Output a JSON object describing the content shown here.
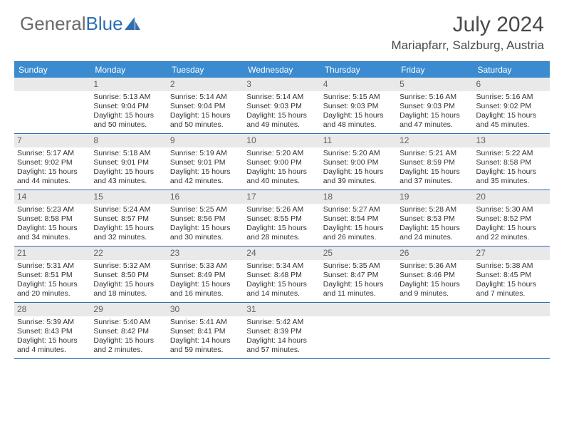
{
  "logo": {
    "text1": "General",
    "text2": "Blue"
  },
  "title": "July 2024",
  "location": "Mariapfarr, Salzburg, Austria",
  "colors": {
    "header_bg": "#3a8bd0",
    "border": "#2f6fb0",
    "daynum_bg": "#e9e9e9",
    "text": "#333333",
    "title_text": "#4a4a4a"
  },
  "typography": {
    "title_fontsize": 30,
    "location_fontsize": 17,
    "dow_fontsize": 12,
    "cell_fontsize": 10.5
  },
  "dow": [
    "Sunday",
    "Monday",
    "Tuesday",
    "Wednesday",
    "Thursday",
    "Friday",
    "Saturday"
  ],
  "weeks": [
    [
      {
        "n": "",
        "sr": "",
        "ss": "",
        "d1": "",
        "d2": ""
      },
      {
        "n": "1",
        "sr": "Sunrise: 5:13 AM",
        "ss": "Sunset: 9:04 PM",
        "d1": "Daylight: 15 hours",
        "d2": "and 50 minutes."
      },
      {
        "n": "2",
        "sr": "Sunrise: 5:14 AM",
        "ss": "Sunset: 9:04 PM",
        "d1": "Daylight: 15 hours",
        "d2": "and 50 minutes."
      },
      {
        "n": "3",
        "sr": "Sunrise: 5:14 AM",
        "ss": "Sunset: 9:03 PM",
        "d1": "Daylight: 15 hours",
        "d2": "and 49 minutes."
      },
      {
        "n": "4",
        "sr": "Sunrise: 5:15 AM",
        "ss": "Sunset: 9:03 PM",
        "d1": "Daylight: 15 hours",
        "d2": "and 48 minutes."
      },
      {
        "n": "5",
        "sr": "Sunrise: 5:16 AM",
        "ss": "Sunset: 9:03 PM",
        "d1": "Daylight: 15 hours",
        "d2": "and 47 minutes."
      },
      {
        "n": "6",
        "sr": "Sunrise: 5:16 AM",
        "ss": "Sunset: 9:02 PM",
        "d1": "Daylight: 15 hours",
        "d2": "and 45 minutes."
      }
    ],
    [
      {
        "n": "7",
        "sr": "Sunrise: 5:17 AM",
        "ss": "Sunset: 9:02 PM",
        "d1": "Daylight: 15 hours",
        "d2": "and 44 minutes."
      },
      {
        "n": "8",
        "sr": "Sunrise: 5:18 AM",
        "ss": "Sunset: 9:01 PM",
        "d1": "Daylight: 15 hours",
        "d2": "and 43 minutes."
      },
      {
        "n": "9",
        "sr": "Sunrise: 5:19 AM",
        "ss": "Sunset: 9:01 PM",
        "d1": "Daylight: 15 hours",
        "d2": "and 42 minutes."
      },
      {
        "n": "10",
        "sr": "Sunrise: 5:20 AM",
        "ss": "Sunset: 9:00 PM",
        "d1": "Daylight: 15 hours",
        "d2": "and 40 minutes."
      },
      {
        "n": "11",
        "sr": "Sunrise: 5:20 AM",
        "ss": "Sunset: 9:00 PM",
        "d1": "Daylight: 15 hours",
        "d2": "and 39 minutes."
      },
      {
        "n": "12",
        "sr": "Sunrise: 5:21 AM",
        "ss": "Sunset: 8:59 PM",
        "d1": "Daylight: 15 hours",
        "d2": "and 37 minutes."
      },
      {
        "n": "13",
        "sr": "Sunrise: 5:22 AM",
        "ss": "Sunset: 8:58 PM",
        "d1": "Daylight: 15 hours",
        "d2": "and 35 minutes."
      }
    ],
    [
      {
        "n": "14",
        "sr": "Sunrise: 5:23 AM",
        "ss": "Sunset: 8:58 PM",
        "d1": "Daylight: 15 hours",
        "d2": "and 34 minutes."
      },
      {
        "n": "15",
        "sr": "Sunrise: 5:24 AM",
        "ss": "Sunset: 8:57 PM",
        "d1": "Daylight: 15 hours",
        "d2": "and 32 minutes."
      },
      {
        "n": "16",
        "sr": "Sunrise: 5:25 AM",
        "ss": "Sunset: 8:56 PM",
        "d1": "Daylight: 15 hours",
        "d2": "and 30 minutes."
      },
      {
        "n": "17",
        "sr": "Sunrise: 5:26 AM",
        "ss": "Sunset: 8:55 PM",
        "d1": "Daylight: 15 hours",
        "d2": "and 28 minutes."
      },
      {
        "n": "18",
        "sr": "Sunrise: 5:27 AM",
        "ss": "Sunset: 8:54 PM",
        "d1": "Daylight: 15 hours",
        "d2": "and 26 minutes."
      },
      {
        "n": "19",
        "sr": "Sunrise: 5:28 AM",
        "ss": "Sunset: 8:53 PM",
        "d1": "Daylight: 15 hours",
        "d2": "and 24 minutes."
      },
      {
        "n": "20",
        "sr": "Sunrise: 5:30 AM",
        "ss": "Sunset: 8:52 PM",
        "d1": "Daylight: 15 hours",
        "d2": "and 22 minutes."
      }
    ],
    [
      {
        "n": "21",
        "sr": "Sunrise: 5:31 AM",
        "ss": "Sunset: 8:51 PM",
        "d1": "Daylight: 15 hours",
        "d2": "and 20 minutes."
      },
      {
        "n": "22",
        "sr": "Sunrise: 5:32 AM",
        "ss": "Sunset: 8:50 PM",
        "d1": "Daylight: 15 hours",
        "d2": "and 18 minutes."
      },
      {
        "n": "23",
        "sr": "Sunrise: 5:33 AM",
        "ss": "Sunset: 8:49 PM",
        "d1": "Daylight: 15 hours",
        "d2": "and 16 minutes."
      },
      {
        "n": "24",
        "sr": "Sunrise: 5:34 AM",
        "ss": "Sunset: 8:48 PM",
        "d1": "Daylight: 15 hours",
        "d2": "and 14 minutes."
      },
      {
        "n": "25",
        "sr": "Sunrise: 5:35 AM",
        "ss": "Sunset: 8:47 PM",
        "d1": "Daylight: 15 hours",
        "d2": "and 11 minutes."
      },
      {
        "n": "26",
        "sr": "Sunrise: 5:36 AM",
        "ss": "Sunset: 8:46 PM",
        "d1": "Daylight: 15 hours",
        "d2": "and 9 minutes."
      },
      {
        "n": "27",
        "sr": "Sunrise: 5:38 AM",
        "ss": "Sunset: 8:45 PM",
        "d1": "Daylight: 15 hours",
        "d2": "and 7 minutes."
      }
    ],
    [
      {
        "n": "28",
        "sr": "Sunrise: 5:39 AM",
        "ss": "Sunset: 8:43 PM",
        "d1": "Daylight: 15 hours",
        "d2": "and 4 minutes."
      },
      {
        "n": "29",
        "sr": "Sunrise: 5:40 AM",
        "ss": "Sunset: 8:42 PM",
        "d1": "Daylight: 15 hours",
        "d2": "and 2 minutes."
      },
      {
        "n": "30",
        "sr": "Sunrise: 5:41 AM",
        "ss": "Sunset: 8:41 PM",
        "d1": "Daylight: 14 hours",
        "d2": "and 59 minutes."
      },
      {
        "n": "31",
        "sr": "Sunrise: 5:42 AM",
        "ss": "Sunset: 8:39 PM",
        "d1": "Daylight: 14 hours",
        "d2": "and 57 minutes."
      },
      {
        "n": "",
        "sr": "",
        "ss": "",
        "d1": "",
        "d2": ""
      },
      {
        "n": "",
        "sr": "",
        "ss": "",
        "d1": "",
        "d2": ""
      },
      {
        "n": "",
        "sr": "",
        "ss": "",
        "d1": "",
        "d2": ""
      }
    ]
  ]
}
